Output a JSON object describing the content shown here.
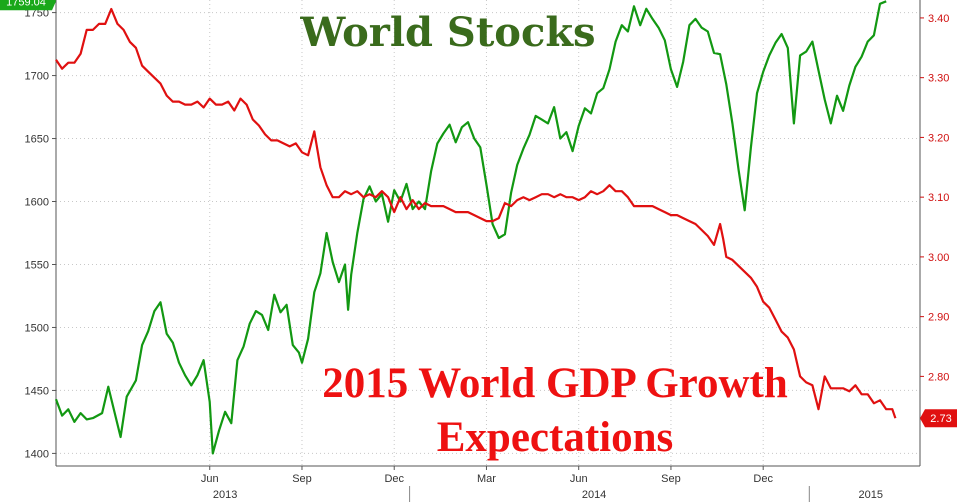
{
  "chart_data": {
    "type": "line",
    "titles": {
      "stocks": "World Stocks",
      "gdp_line1": "2015 World GDP Growth",
      "gdp_line2": "Expectations"
    },
    "x_range": [
      0,
      28.1
    ],
    "x_month_ticks": [
      {
        "label": "Jun",
        "x": 5
      },
      {
        "label": "Sep",
        "x": 8
      },
      {
        "label": "Dec",
        "x": 11
      },
      {
        "label": "Mar",
        "x": 14
      },
      {
        "label": "Jun",
        "x": 17
      },
      {
        "label": "Sep",
        "x": 20
      },
      {
        "label": "Dec",
        "x": 23
      }
    ],
    "x_year_labels": [
      {
        "label": "2013",
        "x": 5.5
      },
      {
        "label": "2014",
        "x": 17.5
      },
      {
        "label": "2015",
        "x": 26.5
      }
    ],
    "x_year_dividers": [
      11.5,
      24.5
    ],
    "y_left": {
      "min": 1390,
      "max": 1760,
      "ticks": [
        1400,
        1450,
        1500,
        1550,
        1600,
        1650,
        1700,
        1750
      ]
    },
    "y_right": {
      "min": 2.65,
      "max": 3.43,
      "ticks": [
        2.8,
        2.9,
        3.0,
        3.1,
        3.2,
        3.3,
        3.4
      ],
      "tick_labels": [
        "2.80",
        "2.90",
        "3.00",
        "3.10",
        "3.20",
        "3.30",
        "3.40"
      ]
    },
    "series": [
      {
        "name": "World Stocks",
        "axis": "left",
        "color": "#129812",
        "last_label": "1759.04",
        "points": [
          [
            0,
            1443
          ],
          [
            0.2,
            1430
          ],
          [
            0.4,
            1435
          ],
          [
            0.6,
            1425
          ],
          [
            0.8,
            1432
          ],
          [
            1.0,
            1427
          ],
          [
            1.2,
            1428
          ],
          [
            1.5,
            1432
          ],
          [
            1.7,
            1453
          ],
          [
            1.9,
            1433
          ],
          [
            2.1,
            1413
          ],
          [
            2.3,
            1445
          ],
          [
            2.6,
            1458
          ],
          [
            2.8,
            1486
          ],
          [
            3.0,
            1497
          ],
          [
            3.2,
            1513
          ],
          [
            3.4,
            1520
          ],
          [
            3.6,
            1495
          ],
          [
            3.8,
            1488
          ],
          [
            4.0,
            1472
          ],
          [
            4.2,
            1462
          ],
          [
            4.4,
            1454
          ],
          [
            4.6,
            1462
          ],
          [
            4.8,
            1474
          ],
          [
            5.0,
            1441
          ],
          [
            5.1,
            1400
          ],
          [
            5.3,
            1418
          ],
          [
            5.5,
            1433
          ],
          [
            5.7,
            1424
          ],
          [
            5.9,
            1474
          ],
          [
            6.1,
            1485
          ],
          [
            6.3,
            1503
          ],
          [
            6.5,
            1513
          ],
          [
            6.7,
            1510
          ],
          [
            6.9,
            1498
          ],
          [
            7.1,
            1526
          ],
          [
            7.3,
            1512
          ],
          [
            7.5,
            1518
          ],
          [
            7.7,
            1486
          ],
          [
            7.9,
            1480
          ],
          [
            8.0,
            1472
          ],
          [
            8.2,
            1491
          ],
          [
            8.4,
            1528
          ],
          [
            8.6,
            1543
          ],
          [
            8.8,
            1575
          ],
          [
            9.0,
            1552
          ],
          [
            9.2,
            1536
          ],
          [
            9.4,
            1550
          ],
          [
            9.5,
            1514
          ],
          [
            9.6,
            1542
          ],
          [
            9.8,
            1575
          ],
          [
            10.0,
            1602
          ],
          [
            10.2,
            1612
          ],
          [
            10.4,
            1600
          ],
          [
            10.6,
            1606
          ],
          [
            10.8,
            1584
          ],
          [
            11.0,
            1609
          ],
          [
            11.2,
            1600
          ],
          [
            11.4,
            1614
          ],
          [
            11.6,
            1594
          ],
          [
            11.8,
            1600
          ],
          [
            12.0,
            1594
          ],
          [
            12.2,
            1624
          ],
          [
            12.4,
            1646
          ],
          [
            12.6,
            1654
          ],
          [
            12.8,
            1661
          ],
          [
            13.0,
            1647
          ],
          [
            13.2,
            1659
          ],
          [
            13.4,
            1663
          ],
          [
            13.6,
            1650
          ],
          [
            13.8,
            1643
          ],
          [
            14.0,
            1613
          ],
          [
            14.2,
            1582
          ],
          [
            14.4,
            1571
          ],
          [
            14.6,
            1574
          ],
          [
            14.8,
            1607
          ],
          [
            15.0,
            1629
          ],
          [
            15.2,
            1642
          ],
          [
            15.4,
            1653
          ],
          [
            15.6,
            1668
          ],
          [
            15.8,
            1665
          ],
          [
            16.0,
            1662
          ],
          [
            16.2,
            1675
          ],
          [
            16.4,
            1650
          ],
          [
            16.6,
            1655
          ],
          [
            16.8,
            1640
          ],
          [
            17.0,
            1660
          ],
          [
            17.2,
            1674
          ],
          [
            17.4,
            1670
          ],
          [
            17.6,
            1686
          ],
          [
            17.8,
            1690
          ],
          [
            18.0,
            1705
          ],
          [
            18.2,
            1727
          ],
          [
            18.4,
            1740
          ],
          [
            18.6,
            1735
          ],
          [
            18.8,
            1755
          ],
          [
            19.0,
            1740
          ],
          [
            19.2,
            1753
          ],
          [
            19.4,
            1745
          ],
          [
            19.6,
            1738
          ],
          [
            19.8,
            1728
          ],
          [
            20.0,
            1705
          ],
          [
            20.2,
            1691
          ],
          [
            20.4,
            1711
          ],
          [
            20.6,
            1740
          ],
          [
            20.8,
            1745
          ],
          [
            21.0,
            1738
          ],
          [
            21.2,
            1735
          ],
          [
            21.4,
            1718
          ],
          [
            21.6,
            1717
          ],
          [
            21.8,
            1693
          ],
          [
            22.0,
            1662
          ],
          [
            22.2,
            1625
          ],
          [
            22.4,
            1593
          ],
          [
            22.6,
            1643
          ],
          [
            22.8,
            1686
          ],
          [
            23.0,
            1703
          ],
          [
            23.2,
            1716
          ],
          [
            23.4,
            1726
          ],
          [
            23.6,
            1733
          ],
          [
            23.8,
            1722
          ],
          [
            24.0,
            1662
          ],
          [
            24.2,
            1716
          ],
          [
            24.4,
            1719
          ],
          [
            24.6,
            1727
          ],
          [
            24.8,
            1704
          ],
          [
            25.0,
            1681
          ],
          [
            25.2,
            1662
          ],
          [
            25.4,
            1684
          ],
          [
            25.6,
            1672
          ],
          [
            25.8,
            1692
          ],
          [
            26.0,
            1707
          ],
          [
            26.2,
            1715
          ],
          [
            26.4,
            1727
          ],
          [
            26.6,
            1732
          ],
          [
            26.8,
            1757
          ],
          [
            27.0,
            1759
          ]
        ]
      },
      {
        "name": "2015 World GDP Growth Expectations",
        "axis": "right",
        "color": "#e01010",
        "last_label": "2.73",
        "points": [
          [
            0,
            3.33
          ],
          [
            0.2,
            3.315
          ],
          [
            0.4,
            3.325
          ],
          [
            0.6,
            3.325
          ],
          [
            0.8,
            3.34
          ],
          [
            1.0,
            3.38
          ],
          [
            1.2,
            3.38
          ],
          [
            1.4,
            3.39
          ],
          [
            1.6,
            3.39
          ],
          [
            1.8,
            3.415
          ],
          [
            2.0,
            3.39
          ],
          [
            2.2,
            3.38
          ],
          [
            2.4,
            3.36
          ],
          [
            2.6,
            3.35
          ],
          [
            2.8,
            3.32
          ],
          [
            3.0,
            3.31
          ],
          [
            3.2,
            3.3
          ],
          [
            3.4,
            3.29
          ],
          [
            3.6,
            3.27
          ],
          [
            3.8,
            3.26
          ],
          [
            4.0,
            3.26
          ],
          [
            4.2,
            3.255
          ],
          [
            4.4,
            3.255
          ],
          [
            4.6,
            3.26
          ],
          [
            4.8,
            3.25
          ],
          [
            5.0,
            3.265
          ],
          [
            5.2,
            3.255
          ],
          [
            5.4,
            3.255
          ],
          [
            5.6,
            3.26
          ],
          [
            5.8,
            3.245
          ],
          [
            6.0,
            3.265
          ],
          [
            6.2,
            3.255
          ],
          [
            6.4,
            3.23
          ],
          [
            6.6,
            3.22
          ],
          [
            6.8,
            3.205
          ],
          [
            7.0,
            3.195
          ],
          [
            7.2,
            3.195
          ],
          [
            7.4,
            3.19
          ],
          [
            7.6,
            3.185
          ],
          [
            7.8,
            3.19
          ],
          [
            8.0,
            3.175
          ],
          [
            8.2,
            3.17
          ],
          [
            8.4,
            3.21
          ],
          [
            8.6,
            3.15
          ],
          [
            8.8,
            3.12
          ],
          [
            9.0,
            3.1
          ],
          [
            9.2,
            3.1
          ],
          [
            9.4,
            3.11
          ],
          [
            9.6,
            3.105
          ],
          [
            9.8,
            3.11
          ],
          [
            10.0,
            3.1
          ],
          [
            10.2,
            3.105
          ],
          [
            10.4,
            3.1
          ],
          [
            10.6,
            3.11
          ],
          [
            10.8,
            3.1
          ],
          [
            11.0,
            3.075
          ],
          [
            11.2,
            3.1
          ],
          [
            11.4,
            3.08
          ],
          [
            11.6,
            3.095
          ],
          [
            11.8,
            3.08
          ],
          [
            12.0,
            3.09
          ],
          [
            12.2,
            3.085
          ],
          [
            12.4,
            3.085
          ],
          [
            12.6,
            3.085
          ],
          [
            12.8,
            3.08
          ],
          [
            13.0,
            3.075
          ],
          [
            13.2,
            3.075
          ],
          [
            13.4,
            3.075
          ],
          [
            13.6,
            3.07
          ],
          [
            13.8,
            3.065
          ],
          [
            14.0,
            3.06
          ],
          [
            14.2,
            3.06
          ],
          [
            14.4,
            3.065
          ],
          [
            14.6,
            3.09
          ],
          [
            14.8,
            3.085
          ],
          [
            15.0,
            3.095
          ],
          [
            15.2,
            3.1
          ],
          [
            15.4,
            3.095
          ],
          [
            15.6,
            3.1
          ],
          [
            15.8,
            3.105
          ],
          [
            16.0,
            3.105
          ],
          [
            16.2,
            3.1
          ],
          [
            16.4,
            3.105
          ],
          [
            16.6,
            3.1
          ],
          [
            16.8,
            3.1
          ],
          [
            17.0,
            3.095
          ],
          [
            17.2,
            3.1
          ],
          [
            17.4,
            3.11
          ],
          [
            17.6,
            3.105
          ],
          [
            17.8,
            3.11
          ],
          [
            18.0,
            3.12
          ],
          [
            18.2,
            3.11
          ],
          [
            18.4,
            3.11
          ],
          [
            18.6,
            3.1
          ],
          [
            18.8,
            3.085
          ],
          [
            19.0,
            3.085
          ],
          [
            19.2,
            3.085
          ],
          [
            19.4,
            3.085
          ],
          [
            19.6,
            3.08
          ],
          [
            19.8,
            3.075
          ],
          [
            20.0,
            3.07
          ],
          [
            20.2,
            3.07
          ],
          [
            20.4,
            3.065
          ],
          [
            20.6,
            3.06
          ],
          [
            20.8,
            3.055
          ],
          [
            21.0,
            3.045
          ],
          [
            21.2,
            3.035
          ],
          [
            21.4,
            3.02
          ],
          [
            21.6,
            3.055
          ],
          [
            21.7,
            3.03
          ],
          [
            21.8,
            3.0
          ],
          [
            22.0,
            2.995
          ],
          [
            22.2,
            2.985
          ],
          [
            22.4,
            2.975
          ],
          [
            22.6,
            2.965
          ],
          [
            22.8,
            2.95
          ],
          [
            23.0,
            2.925
          ],
          [
            23.2,
            2.915
          ],
          [
            23.4,
            2.895
          ],
          [
            23.6,
            2.875
          ],
          [
            23.8,
            2.865
          ],
          [
            24.0,
            2.845
          ],
          [
            24.2,
            2.8
          ],
          [
            24.4,
            2.79
          ],
          [
            24.6,
            2.785
          ],
          [
            24.8,
            2.745
          ],
          [
            25.0,
            2.8
          ],
          [
            25.2,
            2.78
          ],
          [
            25.4,
            2.78
          ],
          [
            25.6,
            2.78
          ],
          [
            25.8,
            2.775
          ],
          [
            26.0,
            2.785
          ],
          [
            26.2,
            2.77
          ],
          [
            26.4,
            2.77
          ],
          [
            26.6,
            2.755
          ],
          [
            26.8,
            2.76
          ],
          [
            27.0,
            2.745
          ],
          [
            27.2,
            2.745
          ],
          [
            27.3,
            2.73
          ]
        ]
      }
    ]
  }
}
